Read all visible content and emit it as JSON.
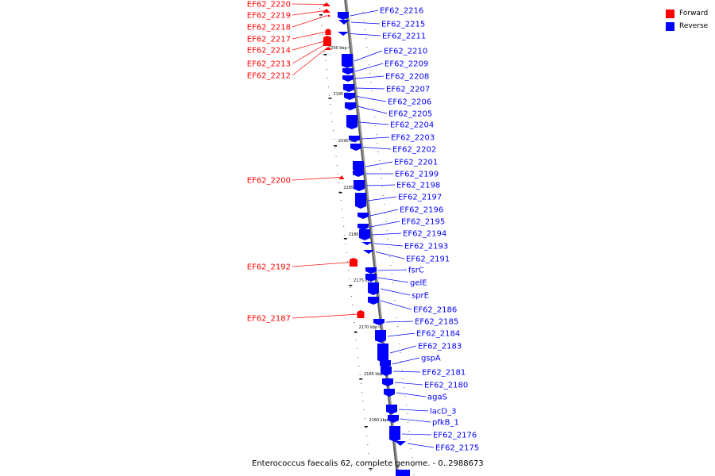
{
  "legend": {
    "forward": {
      "label": "Forward",
      "color": "#ff0000"
    },
    "reverse": {
      "label": "Reverse",
      "color": "#0000ff"
    }
  },
  "caption": "Enterococcus faecalis 62, complete genome. - 0..2988673",
  "ticks": [
    "2200 kbp",
    "2195 kbp",
    "2190 kbp",
    "2185 kbp",
    "2180 kbp",
    "2175 kbp",
    "2170 kbp",
    "2165 kbp",
    "2160 kbp"
  ],
  "forward_features": [
    "EF62_2220",
    "EF62_2219",
    "EF62_2218",
    "EF62_2217",
    "EF62_2214",
    "EF62_2213",
    "EF62_2212",
    "EF62_2200",
    "EF62_2192",
    "EF62_2187"
  ],
  "reverse_features": [
    "EF62_2216",
    "EF62_2215",
    "EF62_2211",
    "EF62_2210",
    "EF62_2209",
    "EF62_2208",
    "EF62_2207",
    "EF62_2206",
    "EF62_2205",
    "EF62_2204",
    "EF62_2203",
    "EF62_2202",
    "EF62_2201",
    "EF62_2199",
    "EF62_2198",
    "EF62_2197",
    "EF62_2196",
    "EF62_2195",
    "EF62_2194",
    "EF62_2193",
    "EF62_2191",
    "fsrC",
    "gelE",
    "sprE",
    "EF62_2186",
    "EF62_2185",
    "EF62_2184",
    "EF62_2183",
    "gspA",
    "EF62_2181",
    "EF62_2180",
    "agaS",
    "lacD_3",
    "pfkB_1",
    "EF62_2176",
    "EF62_2175"
  ]
}
